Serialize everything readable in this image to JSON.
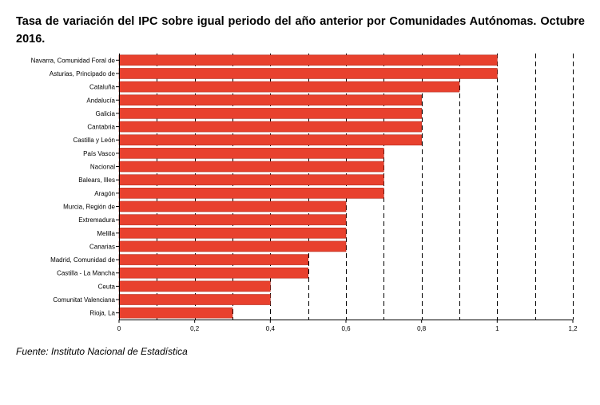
{
  "title": "Tasa de variación del IPC sobre igual periodo del año anterior por Comunidades Autónomas. Octubre 2016.",
  "source": "Fuente: Instituto Nacional de Estadística",
  "colors": {
    "bar": "#e8412e",
    "bar_border": "#b32a1c",
    "grid": "#000000"
  },
  "chart_data": {
    "type": "bar",
    "orientation": "horizontal",
    "title": "Tasa de variación del IPC sobre igual periodo del año anterior por Comunidades Autónomas. Octubre 2016.",
    "categories": [
      "Navarra, Comunidad Foral de",
      "Asturias, Principado de",
      "Cataluña",
      "Andalucía",
      "Galicia",
      "Cantabria",
      "Castilla y León",
      "País Vasco",
      "Nacional",
      "Balears, Illes",
      "Aragón",
      "Murcia, Región de",
      "Extremadura",
      "Melilla",
      "Canarias",
      "Madrid, Comunidad de",
      "Castilla - La Mancha",
      "Ceuta",
      "Comunitat Valenciana",
      "Rioja, La"
    ],
    "values": [
      1.0,
      1.0,
      0.9,
      0.8,
      0.8,
      0.8,
      0.8,
      0.7,
      0.7,
      0.7,
      0.7,
      0.6,
      0.6,
      0.6,
      0.6,
      0.5,
      0.5,
      0.4,
      0.4,
      0.3
    ],
    "xlim": [
      0,
      1.2
    ],
    "xticks": [
      "0",
      "0,2",
      "0,4",
      "0,6",
      "0,8",
      "1",
      "1,2"
    ],
    "grid": "vertical dashed, every 0.1"
  }
}
